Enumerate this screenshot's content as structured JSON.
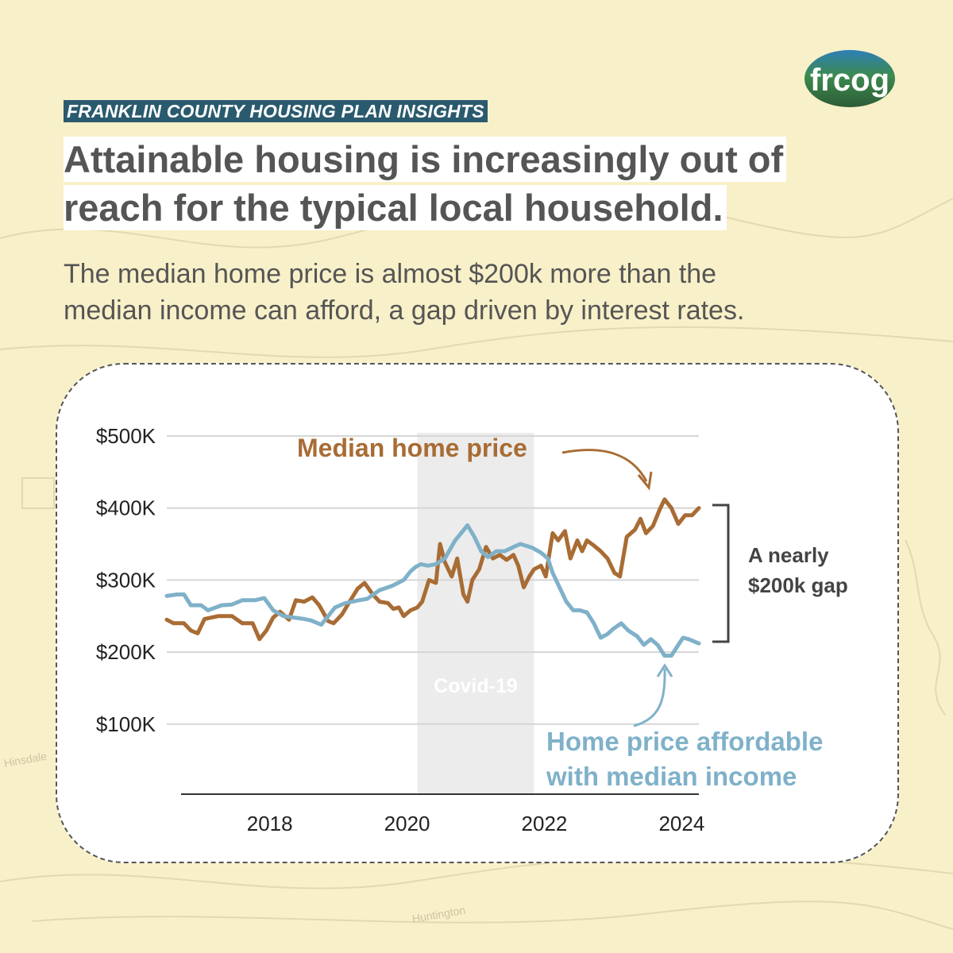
{
  "header": {
    "kicker": "FRANKLIN COUNTY HOUSING PLAN INSIGHTS",
    "logo_text": "frcog",
    "headline_line1": "Attainable housing is increasingly out of",
    "headline_line2": "reach for the typical local household.",
    "subhead_line1": "The median home price is almost $200k more than the",
    "subhead_line2": "median income can afford, a gap driven by interest rates."
  },
  "map_labels": {
    "town1": "Hinsdale",
    "town2": "Huntington"
  },
  "colors": {
    "background": "#f8f0c8",
    "kicker_bg": "#2a5a6e",
    "median_price": "#a86c34",
    "affordable": "#7fb1c9",
    "covid_band": "#ececec",
    "text": "#555555"
  },
  "chart_data": {
    "type": "line",
    "title": "",
    "xlabel": "",
    "ylabel": "",
    "xlim": [
      2016.5,
      2024.25
    ],
    "ylim": [
      0,
      500000
    ],
    "x_ticks": [
      2018,
      2020,
      2022,
      2024
    ],
    "x_tick_labels": [
      "2018",
      "2020",
      "2022",
      "2024"
    ],
    "y_ticks": [
      100000,
      200000,
      300000,
      400000,
      500000
    ],
    "y_tick_labels": [
      "$100K",
      "$200K",
      "$300K",
      "$400K",
      "$500K"
    ],
    "grid": "horizontal",
    "legend": "none (direct labels)",
    "shaded_region": {
      "label": "Covid-19",
      "x_start": 2020.15,
      "x_end": 2021.85
    },
    "annotations": {
      "median_price_label": "Median home price",
      "affordable_label_line1": "Home price affordable",
      "affordable_label_line2": "with median income",
      "gap_label_line1": "A nearly",
      "gap_label_line2": "$200k gap"
    },
    "series": [
      {
        "name": "Median home price",
        "color": "#a86c34",
        "points": [
          [
            2016.5,
            245000
          ],
          [
            2016.6,
            240000
          ],
          [
            2016.75,
            240000
          ],
          [
            2016.85,
            230000
          ],
          [
            2016.95,
            226000
          ],
          [
            2017.05,
            246000
          ],
          [
            2017.25,
            250000
          ],
          [
            2017.45,
            250000
          ],
          [
            2017.6,
            240000
          ],
          [
            2017.75,
            240000
          ],
          [
            2017.85,
            218000
          ],
          [
            2017.95,
            230000
          ],
          [
            2018.05,
            248000
          ],
          [
            2018.15,
            256000
          ],
          [
            2018.28,
            245000
          ],
          [
            2018.38,
            272000
          ],
          [
            2018.5,
            270000
          ],
          [
            2018.62,
            276000
          ],
          [
            2018.72,
            265000
          ],
          [
            2018.85,
            243000
          ],
          [
            2018.93,
            240000
          ],
          [
            2019.05,
            252000
          ],
          [
            2019.15,
            268000
          ],
          [
            2019.28,
            288000
          ],
          [
            2019.38,
            296000
          ],
          [
            2019.5,
            280000
          ],
          [
            2019.6,
            270000
          ],
          [
            2019.72,
            268000
          ],
          [
            2019.8,
            260000
          ],
          [
            2019.88,
            262000
          ],
          [
            2019.95,
            250000
          ],
          [
            2020.05,
            258000
          ],
          [
            2020.15,
            262000
          ],
          [
            2020.22,
            270000
          ],
          [
            2020.32,
            300000
          ],
          [
            2020.42,
            296000
          ],
          [
            2020.48,
            350000
          ],
          [
            2020.55,
            325000
          ],
          [
            2020.65,
            305000
          ],
          [
            2020.73,
            330000
          ],
          [
            2020.82,
            280000
          ],
          [
            2020.88,
            270000
          ],
          [
            2020.95,
            300000
          ],
          [
            2021.05,
            315000
          ],
          [
            2021.15,
            346000
          ],
          [
            2021.25,
            330000
          ],
          [
            2021.35,
            335000
          ],
          [
            2021.45,
            328000
          ],
          [
            2021.55,
            335000
          ],
          [
            2021.62,
            320000
          ],
          [
            2021.7,
            290000
          ],
          [
            2021.78,
            305000
          ],
          [
            2021.85,
            315000
          ],
          [
            2021.95,
            320000
          ],
          [
            2022.02,
            305000
          ],
          [
            2022.12,
            365000
          ],
          [
            2022.2,
            355000
          ],
          [
            2022.3,
            368000
          ],
          [
            2022.38,
            330000
          ],
          [
            2022.48,
            355000
          ],
          [
            2022.55,
            340000
          ],
          [
            2022.62,
            355000
          ],
          [
            2022.72,
            348000
          ],
          [
            2022.82,
            340000
          ],
          [
            2022.92,
            330000
          ],
          [
            2023.02,
            310000
          ],
          [
            2023.1,
            305000
          ],
          [
            2023.2,
            360000
          ],
          [
            2023.32,
            370000
          ],
          [
            2023.4,
            385000
          ],
          [
            2023.48,
            365000
          ],
          [
            2023.58,
            375000
          ],
          [
            2023.68,
            398000
          ],
          [
            2023.75,
            412000
          ],
          [
            2023.85,
            400000
          ],
          [
            2023.95,
            378000
          ],
          [
            2024.05,
            390000
          ],
          [
            2024.15,
            390000
          ],
          [
            2024.25,
            400000
          ]
        ]
      },
      {
        "name": "Home price affordable with median income",
        "color": "#7fb1c9",
        "points": [
          [
            2016.5,
            278000
          ],
          [
            2016.65,
            280000
          ],
          [
            2016.75,
            280000
          ],
          [
            2016.85,
            265000
          ],
          [
            2017.0,
            265000
          ],
          [
            2017.1,
            258000
          ],
          [
            2017.3,
            265000
          ],
          [
            2017.45,
            266000
          ],
          [
            2017.6,
            272000
          ],
          [
            2017.78,
            272000
          ],
          [
            2017.92,
            275000
          ],
          [
            2018.05,
            258000
          ],
          [
            2018.2,
            250000
          ],
          [
            2018.35,
            248000
          ],
          [
            2018.5,
            246000
          ],
          [
            2018.6,
            244000
          ],
          [
            2018.75,
            238000
          ],
          [
            2018.85,
            250000
          ],
          [
            2018.95,
            262000
          ],
          [
            2019.1,
            268000
          ],
          [
            2019.3,
            272000
          ],
          [
            2019.42,
            274000
          ],
          [
            2019.6,
            286000
          ],
          [
            2019.78,
            292000
          ],
          [
            2019.95,
            300000
          ],
          [
            2020.05,
            312000
          ],
          [
            2020.12,
            318000
          ],
          [
            2020.2,
            322000
          ],
          [
            2020.3,
            320000
          ],
          [
            2020.42,
            322000
          ],
          [
            2020.55,
            330000
          ],
          [
            2020.7,
            355000
          ],
          [
            2020.88,
            376000
          ],
          [
            2020.98,
            360000
          ],
          [
            2021.08,
            340000
          ],
          [
            2021.18,
            332000
          ],
          [
            2021.3,
            340000
          ],
          [
            2021.42,
            340000
          ],
          [
            2021.55,
            346000
          ],
          [
            2021.65,
            350000
          ],
          [
            2021.72,
            348000
          ],
          [
            2021.82,
            345000
          ],
          [
            2021.95,
            338000
          ],
          [
            2022.05,
            330000
          ],
          [
            2022.12,
            310000
          ],
          [
            2022.22,
            290000
          ],
          [
            2022.32,
            270000
          ],
          [
            2022.42,
            258000
          ],
          [
            2022.52,
            258000
          ],
          [
            2022.62,
            255000
          ],
          [
            2022.72,
            240000
          ],
          [
            2022.82,
            220000
          ],
          [
            2022.92,
            225000
          ],
          [
            2023.0,
            232000
          ],
          [
            2023.12,
            240000
          ],
          [
            2023.22,
            230000
          ],
          [
            2023.35,
            222000
          ],
          [
            2023.45,
            210000
          ],
          [
            2023.55,
            218000
          ],
          [
            2023.65,
            210000
          ],
          [
            2023.75,
            195000
          ],
          [
            2023.85,
            195000
          ],
          [
            2023.95,
            210000
          ],
          [
            2024.02,
            220000
          ],
          [
            2024.1,
            218000
          ],
          [
            2024.25,
            212000
          ]
        ]
      }
    ]
  }
}
